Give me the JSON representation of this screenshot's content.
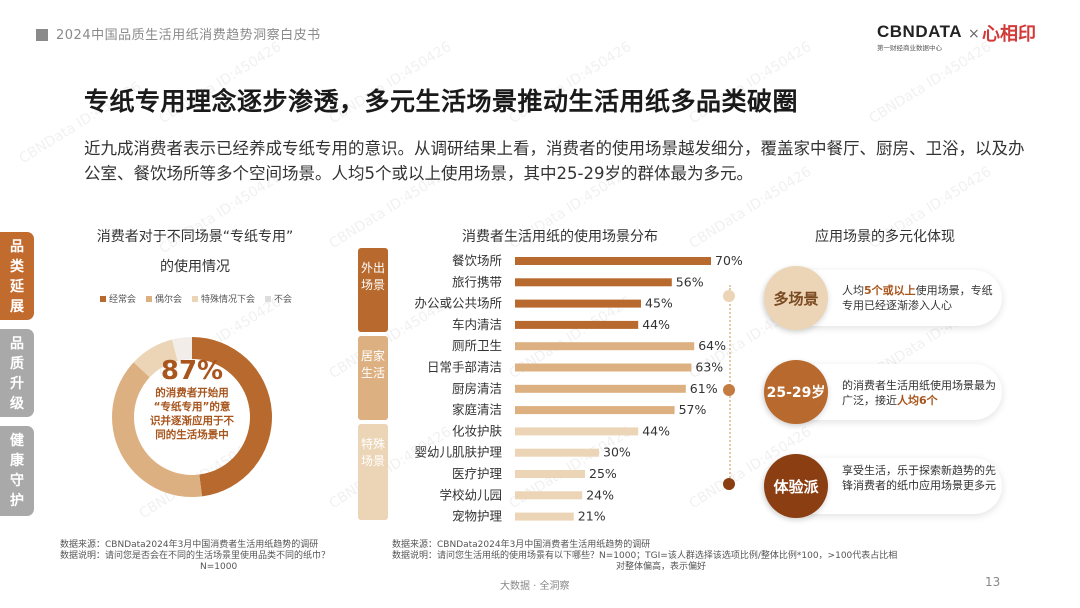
{
  "header": {
    "report_title": "2024中国品质生活用纸消费趋势洞察白皮书"
  },
  "logos": {
    "cbn": "CBNDATA",
    "cbn_sub": "第一财经商业数据中心",
    "x": "×",
    "partner": "心相印"
  },
  "main": {
    "title": "专纸专用理念逐步渗透，多元生活场景推动生活用纸多品类破圈",
    "desc": "近九成消费者表示已经养成专纸专用的意识。从调研结果上看，消费者的使用场景越发细分，覆盖家中餐厅、厨房、卫浴，以及办公室、餐饮场所等多个空间场景。人均5个或以上使用场景，其中25-29岁的群体最为多元。"
  },
  "side_tabs": [
    {
      "label": "品类延展",
      "active": true
    },
    {
      "label": "品质升级",
      "active": false
    },
    {
      "label": "健康守护",
      "active": false
    }
  ],
  "watermark": "CBNData ID:450426",
  "chart_data": [
    {
      "type": "pie",
      "title_line1": "消费者对于不同场景“专纸专用”",
      "title_line2": "的使用情况",
      "legend": [
        "经常会",
        "偶尔会",
        "特殊情况下会",
        "不会"
      ],
      "values": [
        48,
        39,
        9,
        4
      ],
      "colors": [
        "#b86a2e",
        "#ddb082",
        "#ecd5b6",
        "#f2ede8"
      ],
      "center_value": "87%",
      "center_text": [
        "的消费者开始用",
        "“专纸专用”的意",
        "识并逐渐应用于不",
        "同的生活场景中"
      ]
    },
    {
      "type": "bar",
      "title": "消费者生活用纸的使用场景分布",
      "groups": [
        {
          "label": "外出场景",
          "color": "#b86a2e",
          "categories": [
            "餐饮场所",
            "旅行携带",
            "办公或公共场所",
            "车内清洁"
          ],
          "values": [
            70,
            56,
            45,
            44
          ]
        },
        {
          "label": "居家生活",
          "color": "#ddb082",
          "categories": [
            "厕所卫生",
            "日常手部清洁",
            "厨房清洁",
            "家庭清洁"
          ],
          "values": [
            64,
            63,
            61,
            57
          ]
        },
        {
          "label": "特殊场景",
          "color": "#ecd5b6",
          "categories": [
            "化妆护肤",
            "婴幼儿肌肤护理",
            "医疗护理",
            "学校幼儿园",
            "宠物护理"
          ],
          "values": [
            44,
            30,
            25,
            24,
            21
          ]
        }
      ],
      "unit": "%",
      "xlim": [
        0,
        100
      ]
    }
  ],
  "application": {
    "title": "应用场景的多元化体现",
    "items": [
      {
        "badge": "多场景",
        "text_pre": "人均",
        "text_hl": "5个或以上",
        "text_post": "使用场景，专纸专用已经逐渐渗入人心",
        "color": "#ecd5b6",
        "dot": "#ecd5b6"
      },
      {
        "badge": "25-29岁",
        "text_pre": "的消费者生活用纸使用场景最为广泛，接近",
        "text_hl": "人均6个",
        "text_post": "",
        "color": "#b86a2e",
        "dot": "#c47b40"
      },
      {
        "badge": "体验派",
        "text_pre": "享受生活，乐于探索新趋势的先锋消费者的纸巾应用场景更多元",
        "text_hl": "",
        "text_post": "",
        "color": "#8a3e12",
        "dot": "#8a3e12"
      }
    ]
  },
  "notes": {
    "left_line1": "数据来源：CBNData2024年3月中国消费者生活用纸趋势的调研",
    "left_line2": "数据说明：请问您是否会在不同的生活场景里使用品类不同的纸巾？",
    "left_line3": "N=1000",
    "right_line1": "数据来源：CBNData2024年3月中国消费者生活用纸趋势的调研",
    "right_line2": "数据说明：请问您生活用纸的使用场景有以下哪些？N=1000；TGI=该人群选择该选项比例/整体比例*100，>100代表占比相",
    "right_line3": "对整体偏高，表示偏好"
  },
  "footer": {
    "text": "大数据 · 全洞察",
    "page": "13"
  }
}
